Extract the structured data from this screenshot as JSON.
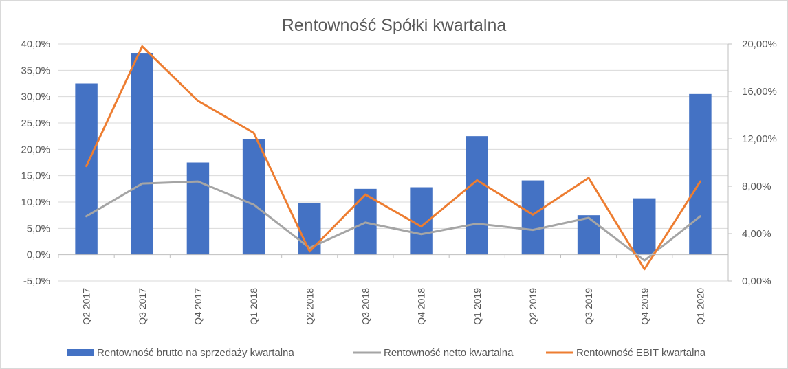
{
  "chart_data": {
    "type": "bar",
    "title": "Rentowność Spółki kwartalna",
    "categories": [
      "Q2 2017",
      "Q3 2017",
      "Q4 2017",
      "Q1 2018",
      "Q2 2018",
      "Q3 2018",
      "Q4 2018",
      "Q1 2019",
      "Q2 2019",
      "Q3 2019",
      "Q4 2019",
      "Q1 2020"
    ],
    "y_left": {
      "ylim": [
        -5,
        40
      ],
      "ticks": [
        -5,
        0,
        5,
        10,
        15,
        20,
        25,
        30,
        35,
        40
      ],
      "tick_labels": [
        "-5,0%",
        "0,0%",
        "5,0%",
        "10,0%",
        "15,0%",
        "20,0%",
        "25,0%",
        "30,0%",
        "35,0%",
        "40,0%"
      ]
    },
    "y_right": {
      "ylim": [
        0,
        20
      ],
      "ticks": [
        0,
        4,
        8,
        12,
        16,
        20
      ],
      "tick_labels": [
        "0,00%",
        "4,00%",
        "8,00%",
        "12,00%",
        "16,00%",
        "20,00%"
      ]
    },
    "series": [
      {
        "name": "Rentowność brutto na sprzedaży kwartalna",
        "type": "bar",
        "axis": "left",
        "color": "#4472c4",
        "values": [
          32.5,
          38.3,
          17.5,
          22.0,
          9.8,
          12.5,
          12.8,
          22.5,
          14.1,
          7.5,
          10.7,
          30.5
        ]
      },
      {
        "name": "Rentowność netto kwartalna",
        "type": "line",
        "axis": "left",
        "color": "#a5a5a5",
        "values": [
          7.3,
          13.5,
          13.9,
          9.5,
          1.3,
          6.1,
          3.9,
          5.9,
          4.7,
          7.0,
          -1.1,
          7.3
        ]
      },
      {
        "name": "Rentowność EBIT kwartalna",
        "type": "line",
        "axis": "right",
        "color": "#ed7d31",
        "values": [
          9.7,
          19.8,
          15.2,
          12.5,
          2.5,
          7.3,
          4.6,
          8.5,
          5.6,
          8.7,
          1.0,
          8.4
        ]
      }
    ],
    "grid": true,
    "legend_position": "bottom"
  }
}
